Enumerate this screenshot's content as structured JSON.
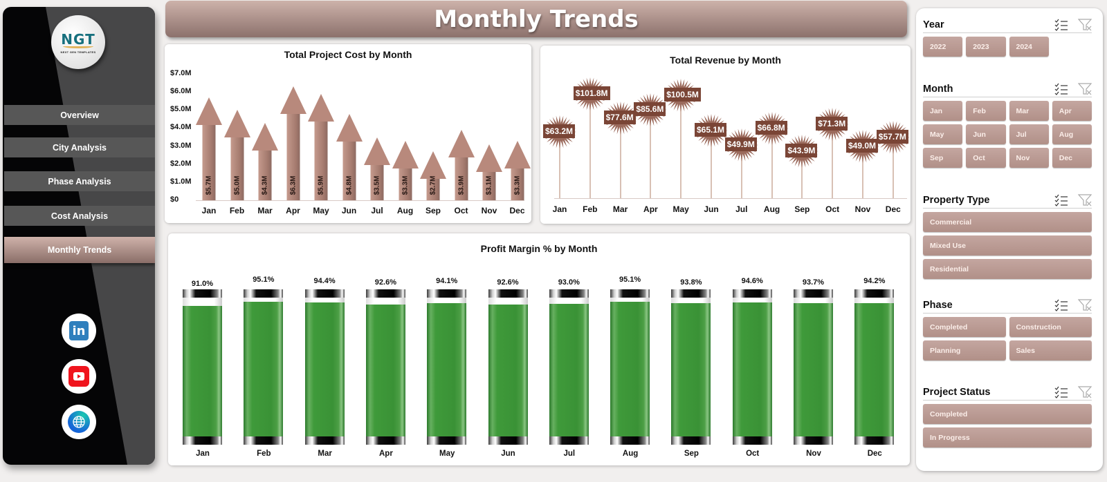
{
  "sidebar": {
    "logo": {
      "brand": "NGT",
      "tagline": "NEXT GEN TEMPLATES"
    },
    "nav": [
      {
        "label": "Overview",
        "active": false
      },
      {
        "label": "City Analysis",
        "active": false
      },
      {
        "label": "Phase Analysis",
        "active": false
      },
      {
        "label": "Cost Analysis",
        "active": false
      },
      {
        "label": "Monthly Trends",
        "active": true
      }
    ],
    "social": [
      {
        "name": "linkedin-icon",
        "glyph": "in"
      },
      {
        "name": "youtube-icon"
      },
      {
        "name": "website-globe-icon",
        "glyph": "🌐"
      }
    ]
  },
  "header": {
    "title": "Monthly Trends"
  },
  "colors": {
    "accent": "#b8897c",
    "header": "#a88b84",
    "revenue_label": "#7a4536",
    "profit_fill": "#3a9236",
    "chip": "#b9978f",
    "sidebar_dark": "#050506",
    "sidebar_gray": "#474748"
  },
  "chart_data": [
    {
      "type": "bar",
      "title": "Total Project Cost by Month",
      "categories": [
        "Jan",
        "Feb",
        "Mar",
        "Apr",
        "May",
        "Jun",
        "Jul",
        "Aug",
        "Sep",
        "Oct",
        "Nov",
        "Dec"
      ],
      "values": [
        5.7,
        5.0,
        4.3,
        6.3,
        5.9,
        4.8,
        3.5,
        3.3,
        2.7,
        3.9,
        3.1,
        3.3
      ],
      "labels": [
        "$5.7M",
        "$5.0M",
        "$4.3M",
        "$6.3M",
        "$5.9M",
        "$4.8M",
        "$3.5M",
        "$3.3M",
        "$2.7M",
        "$3.9M",
        "$3.1M",
        "$3.3M"
      ],
      "yticks": [
        "$7.0M",
        "$6.0M",
        "$5.0M",
        "$4.0M",
        "$3.0M",
        "$2.0M",
        "$1.0M",
        "$0"
      ],
      "ylim": [
        0,
        7
      ],
      "units": "$M",
      "xlabel": "",
      "ylabel": "",
      "grid": false,
      "legend": "none"
    },
    {
      "type": "line",
      "subtype": "lollipop",
      "title": "Total Revenue by Month",
      "categories": [
        "Jan",
        "Feb",
        "Mar",
        "Apr",
        "May",
        "Jun",
        "Jul",
        "Aug",
        "Sep",
        "Oct",
        "Nov",
        "Dec"
      ],
      "values": [
        63.2,
        101.8,
        77.6,
        85.6,
        100.5,
        65.1,
        49.9,
        66.8,
        43.9,
        71.3,
        49.0,
        57.7
      ],
      "labels": [
        "$63.2M",
        "$101.8M",
        "$77.6M",
        "$85.6M",
        "$100.5M",
        "$65.1M",
        "$49.9M",
        "$66.8M",
        "$43.9M",
        "$71.3M",
        "$49.0M",
        "$57.7M"
      ],
      "units": "$M",
      "grid": false,
      "legend": "none"
    },
    {
      "type": "bar",
      "title": "Profit Margin % by Month",
      "categories": [
        "Jan",
        "Feb",
        "Mar",
        "Apr",
        "May",
        "Jun",
        "Jul",
        "Aug",
        "Sep",
        "Oct",
        "Nov",
        "Dec"
      ],
      "values": [
        91.0,
        95.1,
        94.4,
        92.6,
        94.1,
        92.6,
        93.0,
        95.1,
        93.8,
        94.6,
        93.7,
        94.2
      ],
      "labels": [
        "91.0%",
        "95.1%",
        "94.4%",
        "92.6%",
        "94.1%",
        "92.6%",
        "93.0%",
        "95.1%",
        "93.8%",
        "94.6%",
        "93.7%",
        "94.2%"
      ],
      "ylim": [
        0,
        100
      ],
      "units": "%",
      "grid": false,
      "legend": "none"
    }
  ],
  "filters": [
    {
      "title": "Year",
      "columns": 4,
      "items": [
        "2022",
        "2023",
        "2024"
      ]
    },
    {
      "title": "Month",
      "columns": 4,
      "items": [
        "Jan",
        "Feb",
        "Mar",
        "Apr",
        "May",
        "Jun",
        "Jul",
        "Aug",
        "Sep",
        "Oct",
        "Nov",
        "Dec"
      ]
    },
    {
      "title": "Property Type",
      "columns": 1,
      "items": [
        "Commercial",
        "Mixed Use",
        "Residential"
      ]
    },
    {
      "title": "Phase",
      "columns": 2,
      "items": [
        "Completed",
        "Construction",
        "Planning",
        "Sales"
      ]
    },
    {
      "title": "Project Status",
      "columns": 1,
      "items": [
        "Completed",
        "In Progress"
      ]
    }
  ],
  "filter_icons": {
    "multiselect": "multi-select-icon",
    "clear": "clear-filter-icon"
  }
}
